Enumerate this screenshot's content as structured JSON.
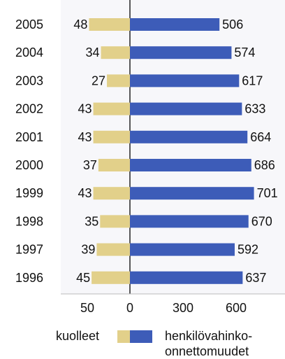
{
  "chart_data": {
    "type": "bar",
    "orientation": "horizontal-diverging",
    "categories": [
      "2005",
      "2004",
      "2003",
      "2002",
      "2001",
      "2000",
      "1999",
      "1998",
      "1997",
      "1996"
    ],
    "series": [
      {
        "name": "kuolleet",
        "color": "#e2d08a",
        "direction": "left",
        "values": [
          48,
          34,
          27,
          43,
          43,
          37,
          43,
          35,
          39,
          45
        ]
      },
      {
        "name": "henkilövahinko-onnettomuudet",
        "color": "#3d5cb8",
        "direction": "right",
        "values": [
          506,
          574,
          617,
          633,
          664,
          686,
          701,
          670,
          592,
          637
        ]
      }
    ],
    "left_axis": {
      "ticks": [
        0,
        50
      ],
      "tick_labels": [
        "0",
        "50"
      ],
      "max": 50
    },
    "right_axis": {
      "ticks": [
        0,
        300,
        600
      ],
      "tick_labels": [
        "0",
        "300",
        "600"
      ],
      "max": 600
    },
    "grid": false,
    "legend": {
      "placement": "bottom",
      "left_label": "kuolleet",
      "right_label_line1": "henkilövahinko-",
      "right_label_line2": "onnettomuudet"
    }
  }
}
